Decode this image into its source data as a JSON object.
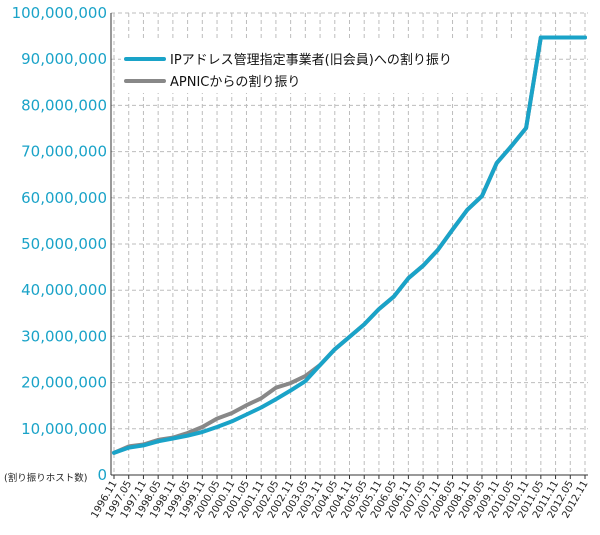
{
  "chart_data": {
    "type": "line",
    "ylabel": "(割り振りホスト数)",
    "ylim": [
      0,
      100000000
    ],
    "y_ticks": [
      "0",
      "10,000,000",
      "20,000,000",
      "30,000,000",
      "40,000,000",
      "50,000,000",
      "60,000,000",
      "70,000,000",
      "80,000,000",
      "90,000,000",
      "100,000,000"
    ],
    "x_ticks": [
      "1996.11",
      "1997.05",
      "1997.11",
      "1998.05",
      "1998.11",
      "1999.05",
      "1999.11",
      "2000.05",
      "2000.11",
      "2001.05",
      "2001.11",
      "2002.05",
      "2002.11",
      "2003.05",
      "2003.11",
      "2004.05",
      "2004.11",
      "2005.05",
      "2005.11",
      "2006.05",
      "2006.11",
      "2007.05",
      "2007.11",
      "2008.05",
      "2008.11",
      "2009.05",
      "2009.11",
      "2010.05",
      "2010.11",
      "2011.05",
      "2011.11",
      "2012.05",
      "2012.11"
    ],
    "grid": true,
    "legend_position": "top-left",
    "series": [
      {
        "name": "IPアドレス管理指定事業者(旧会員)への割り振り",
        "color": "#1aa3c8",
        "values": [
          4800000,
          5900000,
          6400000,
          7300000,
          7900000,
          8500000,
          9300000,
          10400000,
          11600000,
          13100000,
          14600000,
          16400000,
          18300000,
          20300000,
          23800000,
          27200000,
          29900000,
          32600000,
          35900000,
          38600000,
          42600000,
          45300000,
          48700000,
          53100000,
          57400000,
          60400000,
          67500000,
          71200000,
          75100000,
          94700000,
          94700000,
          94700000,
          94700000
        ]
      },
      {
        "name": "APNICからの割り振り",
        "color": "#888888",
        "values": [
          4800000,
          6200000,
          6600000,
          7600000,
          8100000,
          9100000,
          10400000,
          12200000,
          13400000,
          15100000,
          16600000,
          18900000,
          19900000,
          21400000,
          23800000,
          27200000,
          29900000,
          32600000,
          35900000,
          38600000,
          42600000,
          45300000,
          48700000,
          53100000,
          57400000,
          60400000,
          67500000,
          71200000,
          75100000,
          94700000,
          94700000,
          94700000,
          94700000
        ]
      }
    ]
  }
}
